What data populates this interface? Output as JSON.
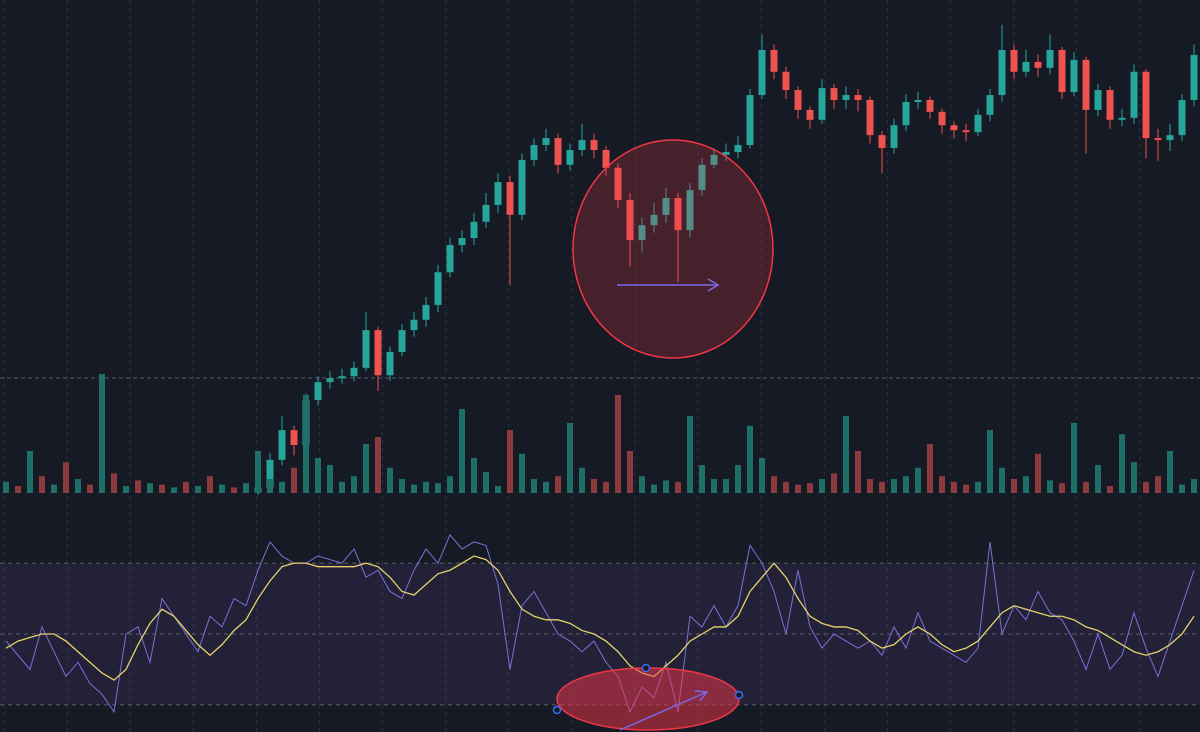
{
  "chart_data": [
    {
      "type": "candlestick",
      "up_color": "#26a69a",
      "down_color": "#ef5350",
      "ylim": [
        0,
        100
      ],
      "open": [
        null,
        null,
        null,
        null,
        null,
        null,
        null,
        null,
        null,
        null,
        null,
        null,
        null,
        null,
        null,
        null,
        null,
        null,
        null,
        null,
        null,
        0.5,
        1.4,
        7.1,
        13.1,
        10.1,
        19.2,
        22.8,
        23.6,
        24,
        25.7,
        33.3,
        24.2,
        28.9,
        33.3,
        35.4,
        38.4,
        45,
        50.5,
        51.9,
        55.2,
        58.6,
        63.2,
        56.6,
        67.7,
        70.7,
        72.1,
        66.7,
        69.7,
        71.7,
        69.7,
        66.1,
        59.6,
        51.5,
        54.5,
        56.6,
        60,
        53.5,
        61.6,
        66.7,
        68.7,
        69.3,
        70.7,
        80.8,
        89.9,
        85.5,
        81.8,
        77.8,
        75.8,
        82.2,
        79.8,
        80.8,
        79.8,
        72.7,
        70.1,
        74.7,
        79.4,
        79.8,
        77.4,
        74.7,
        73.7,
        73.3,
        76.8,
        80.8,
        89.9,
        85.5,
        87.5,
        86.3,
        89.9,
        81.4,
        87.9,
        77.8,
        81.8,
        75.8,
        76.2,
        85.5,
        72.1,
        71.7,
        72.7,
        79.8
      ],
      "high": [
        null,
        null,
        null,
        null,
        null,
        null,
        null,
        null,
        null,
        null,
        null,
        null,
        null,
        null,
        null,
        null,
        null,
        null,
        null,
        null,
        null,
        3,
        8.5,
        16,
        14,
        20.5,
        24,
        25,
        25.5,
        27,
        37,
        34,
        30,
        34.5,
        37,
        40,
        46.5,
        52,
        53.5,
        57,
        61,
        65,
        64.5,
        69,
        72,
        74,
        73,
        71,
        75,
        73,
        70.5,
        67,
        61,
        56,
        59,
        62,
        61,
        63,
        68,
        70,
        71,
        72.5,
        82,
        93,
        91,
        86.5,
        82.5,
        78.5,
        84,
        83,
        82.5,
        82,
        80.5,
        73.5,
        76,
        81,
        81.5,
        80.5,
        78,
        75.5,
        75,
        78,
        82,
        95,
        91,
        90,
        89,
        93,
        90.5,
        89.5,
        88.5,
        83,
        82.5,
        78,
        87,
        86,
        74,
        75,
        81,
        91
      ],
      "low": [
        null,
        null,
        null,
        null,
        null,
        null,
        null,
        null,
        null,
        null,
        null,
        null,
        null,
        null,
        null,
        null,
        null,
        null,
        null,
        null,
        null,
        0,
        0.5,
        6,
        8,
        9,
        18,
        21.5,
        22.5,
        23,
        25,
        21,
        23,
        28,
        32,
        34,
        37,
        44,
        49,
        50.5,
        54,
        57,
        42.4,
        55.5,
        66.5,
        69.5,
        65,
        65.5,
        68.5,
        68,
        64.5,
        58,
        46,
        49,
        53,
        55,
        43,
        52,
        60.5,
        66,
        67.5,
        68,
        70,
        80,
        84,
        80,
        76,
        74,
        75,
        78,
        78,
        77.5,
        71,
        65,
        69,
        73.5,
        78,
        76,
        73,
        72,
        71.5,
        72.5,
        75.5,
        79.5,
        84,
        84.5,
        84.5,
        85,
        80,
        80.5,
        69,
        76.5,
        74,
        74.5,
        75,
        68,
        67.5,
        69.5,
        71.5,
        78.5
      ],
      "close": [
        null,
        null,
        null,
        null,
        null,
        null,
        null,
        null,
        null,
        null,
        null,
        null,
        null,
        null,
        null,
        null,
        null,
        null,
        null,
        null,
        null,
        1.4,
        7.1,
        13.1,
        10.1,
        19.2,
        22.8,
        23.6,
        24,
        25.7,
        33.3,
        24.2,
        28.9,
        33.3,
        35.4,
        38.4,
        45,
        50.5,
        51.9,
        55.2,
        58.6,
        63.2,
        56.6,
        67.7,
        70.7,
        72.1,
        66.7,
        69.7,
        71.7,
        69.7,
        66.1,
        59.6,
        51.5,
        54.5,
        56.6,
        60,
        53.5,
        61.6,
        66.7,
        68.7,
        69.3,
        70.7,
        80.8,
        89.9,
        85.5,
        81.8,
        77.8,
        75.8,
        82.2,
        79.8,
        80.8,
        79.8,
        72.7,
        70.1,
        74.7,
        79.4,
        79.8,
        77.4,
        74.7,
        73.7,
        73.3,
        76.8,
        80.8,
        89.9,
        85.5,
        87.5,
        86.3,
        89.9,
        81.4,
        87.9,
        77.8,
        81.8,
        75.8,
        76.2,
        85.5,
        72.1,
        71.7,
        72.7,
        79.8,
        88.9
      ]
    },
    {
      "type": "bar",
      "up_color": "#1f6f69",
      "down_color": "#8c3a3d",
      "ylim": [
        0,
        100
      ],
      "values": [
        8,
        5,
        30,
        12,
        6,
        22,
        10,
        6,
        85,
        14,
        5,
        9,
        7,
        6,
        4,
        8,
        5,
        12,
        6,
        4,
        7,
        30,
        10,
        8,
        18,
        70,
        25,
        20,
        8,
        12,
        35,
        40,
        18,
        10,
        6,
        8,
        7,
        12,
        60,
        25,
        15,
        5,
        45,
        28,
        10,
        8,
        12,
        50,
        18,
        10,
        8,
        70,
        30,
        12,
        6,
        9,
        8,
        55,
        20,
        10,
        10,
        20,
        48,
        25,
        12,
        8,
        6,
        7,
        10,
        14,
        55,
        30,
        10,
        8,
        10,
        12,
        18,
        35,
        12,
        8,
        6,
        8,
        45,
        18,
        10,
        12,
        28,
        9,
        7,
        50,
        8,
        20,
        5,
        42,
        22,
        8,
        12,
        30,
        6,
        10
      ]
    },
    {
      "type": "line",
      "ylim": [
        15,
        85
      ],
      "band": [
        30,
        70
      ],
      "band_color": "rgba(126,87,194,0.12)",
      "levels": [
        30,
        50,
        70
      ],
      "series": [
        {
          "color": "#7e6fd6",
          "values": [
            48,
            44,
            40,
            52,
            45,
            38,
            42,
            36,
            33,
            28,
            50,
            52,
            42,
            60,
            55,
            50,
            45,
            55,
            52,
            60,
            58,
            68,
            76,
            72,
            70,
            70,
            72,
            71,
            70,
            74,
            66,
            68,
            62,
            60,
            68,
            74,
            70,
            78,
            74,
            76,
            75,
            64,
            40,
            58,
            62,
            56,
            50,
            48,
            45,
            48,
            42,
            38,
            28,
            35,
            32,
            42,
            28,
            55,
            52,
            58,
            52,
            58,
            75,
            70,
            62,
            50,
            68,
            52,
            46,
            50,
            48,
            46,
            48,
            44,
            52,
            46,
            56,
            48,
            46,
            44,
            42,
            46,
            76,
            50,
            58,
            54,
            62,
            56,
            54,
            48,
            40,
            50,
            40,
            44,
            56,
            46,
            38,
            48,
            58,
            68
          ]
        },
        {
          "color": "#e6d36a",
          "values": [
            46,
            48,
            49,
            50,
            50,
            48,
            45,
            42,
            39,
            37,
            40,
            47,
            53,
            57,
            55,
            51,
            47,
            44,
            47,
            51,
            54,
            60,
            65,
            69,
            70,
            70,
            69,
            69,
            69,
            69,
            70,
            69,
            66,
            62,
            61,
            64,
            67,
            68,
            70,
            72,
            71,
            68,
            62,
            57,
            55,
            54,
            54,
            53,
            51,
            50,
            48,
            45,
            41,
            39,
            38,
            41,
            44,
            48,
            50,
            52,
            52,
            55,
            62,
            66,
            70,
            66,
            60,
            55,
            53,
            52,
            52,
            51,
            48,
            46,
            47,
            50,
            52,
            50,
            47,
            45,
            46,
            48,
            52,
            56,
            58,
            57,
            56,
            55,
            55,
            54,
            52,
            51,
            49,
            47,
            45,
            44,
            45,
            47,
            50,
            55
          ]
        }
      ]
    }
  ]
}
